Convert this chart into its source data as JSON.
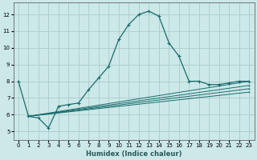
{
  "xlabel": "Humidex (Indice chaleur)",
  "bg_color": "#cce8e8",
  "grid_color": "#aacccc",
  "line_color": "#1a6b6b",
  "xlim": [
    -0.5,
    23.5
  ],
  "ylim": [
    4.5,
    12.7
  ],
  "xticks": [
    0,
    1,
    2,
    3,
    4,
    5,
    6,
    7,
    8,
    9,
    10,
    11,
    12,
    13,
    14,
    15,
    16,
    17,
    18,
    19,
    20,
    21,
    22,
    23
  ],
  "yticks": [
    5,
    6,
    7,
    8,
    9,
    10,
    11,
    12
  ],
  "main_x": [
    0,
    1,
    2,
    3,
    4,
    5,
    6,
    7,
    8,
    9,
    10,
    11,
    12,
    13,
    14,
    15,
    16,
    17,
    18,
    19,
    20,
    21,
    22,
    23
  ],
  "main_y": [
    8.0,
    5.9,
    5.8,
    5.2,
    6.5,
    6.6,
    6.7,
    7.5,
    8.2,
    8.9,
    10.5,
    11.4,
    12.0,
    12.2,
    11.9,
    10.3,
    9.5,
    8.0,
    8.0,
    7.8,
    7.8,
    7.9,
    8.0,
    8.0
  ],
  "straight_lines": [
    {
      "x": [
        1,
        23
      ],
      "y": [
        5.9,
        8.0
      ]
    },
    {
      "x": [
        1,
        23
      ],
      "y": [
        5.9,
        7.75
      ]
    },
    {
      "x": [
        1,
        23
      ],
      "y": [
        5.9,
        7.55
      ]
    },
    {
      "x": [
        1,
        23
      ],
      "y": [
        5.9,
        7.35
      ]
    }
  ]
}
